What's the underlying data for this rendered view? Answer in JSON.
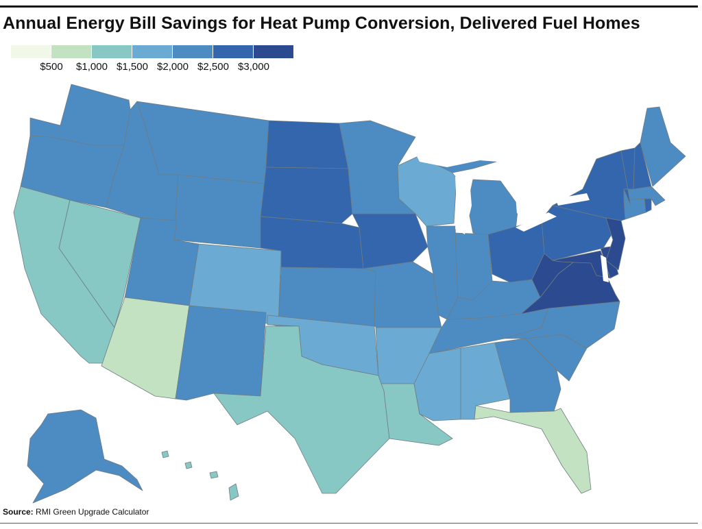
{
  "title": "Annual Energy Bill Savings for Heat Pump Conversion, Delivered Fuel Homes",
  "legend": {
    "swatch_colors": [
      "#f2f8e8",
      "#c2e2c1",
      "#88c8c4",
      "#6aaad3",
      "#4d8bc3",
      "#3366ad",
      "#2c4a8f"
    ],
    "tick_labels": [
      "$500",
      "$1,000",
      "$1,500",
      "$2,000",
      "$2,500",
      "$3,000"
    ]
  },
  "map": {
    "lake_color": "#ffffff",
    "states": [
      {
        "code": "WA",
        "bin": 4
      },
      {
        "code": "OR",
        "bin": 4
      },
      {
        "code": "CA",
        "bin": 2
      },
      {
        "code": "NV",
        "bin": 2
      },
      {
        "code": "ID",
        "bin": 4
      },
      {
        "code": "MT",
        "bin": 4
      },
      {
        "code": "WY",
        "bin": 4
      },
      {
        "code": "UT",
        "bin": 4
      },
      {
        "code": "AZ",
        "bin": 1
      },
      {
        "code": "CO",
        "bin": 3
      },
      {
        "code": "NM",
        "bin": 4
      },
      {
        "code": "ND",
        "bin": 5
      },
      {
        "code": "SD",
        "bin": 5
      },
      {
        "code": "NE",
        "bin": 5
      },
      {
        "code": "KS",
        "bin": 4
      },
      {
        "code": "OK",
        "bin": 3
      },
      {
        "code": "TX",
        "bin": 2
      },
      {
        "code": "MN",
        "bin": 4
      },
      {
        "code": "IA",
        "bin": 5
      },
      {
        "code": "MO",
        "bin": 4
      },
      {
        "code": "AR",
        "bin": 3
      },
      {
        "code": "LA",
        "bin": 2
      },
      {
        "code": "WI",
        "bin": 3
      },
      {
        "code": "IL",
        "bin": 4
      },
      {
        "code": "MI",
        "bin": 4
      },
      {
        "code": "IN",
        "bin": 4
      },
      {
        "code": "OH",
        "bin": 5
      },
      {
        "code": "KY",
        "bin": 4
      },
      {
        "code": "TN",
        "bin": 4
      },
      {
        "code": "MS",
        "bin": 3
      },
      {
        "code": "AL",
        "bin": 3
      },
      {
        "code": "GA",
        "bin": 4
      },
      {
        "code": "FL",
        "bin": 1
      },
      {
        "code": "SC",
        "bin": 4
      },
      {
        "code": "NC",
        "bin": 4
      },
      {
        "code": "VA",
        "bin": 6
      },
      {
        "code": "WV",
        "bin": 6
      },
      {
        "code": "MD",
        "bin": 6
      },
      {
        "code": "DE",
        "bin": 6
      },
      {
        "code": "PA",
        "bin": 5
      },
      {
        "code": "NJ",
        "bin": 6
      },
      {
        "code": "NY",
        "bin": 5
      },
      {
        "code": "CT",
        "bin": 4
      },
      {
        "code": "RI",
        "bin": 5
      },
      {
        "code": "MA",
        "bin": 4
      },
      {
        "code": "VT",
        "bin": 5
      },
      {
        "code": "NH",
        "bin": 5
      },
      {
        "code": "ME",
        "bin": 4
      },
      {
        "code": "AK",
        "bin": 4
      },
      {
        "code": "HI",
        "bin": 2
      }
    ]
  },
  "source": {
    "label": "Source:",
    "text": "RMI Green Upgrade Calculator"
  }
}
